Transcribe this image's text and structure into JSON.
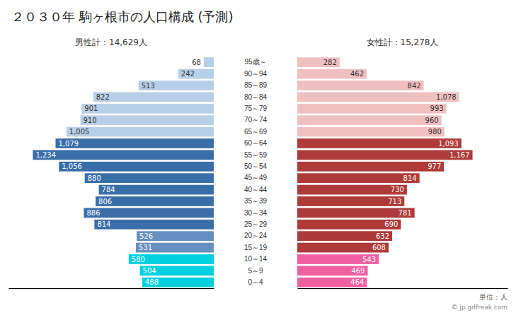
{
  "chart_data": {
    "type": "pyramid",
    "orientation": "horizontal",
    "title": "２０３０年 駒ヶ根市の人口構成 (予測)",
    "categories": [
      "0～4",
      "5～9",
      "10～14",
      "15～19",
      "20～24",
      "25～29",
      "30～34",
      "35～39",
      "40～44",
      "45～49",
      "50～54",
      "55～59",
      "60～64",
      "65～69",
      "70～74",
      "75～79",
      "80～84",
      "85～89",
      "90～94",
      "95歳～"
    ],
    "series": [
      {
        "name": "男性計：14,629人",
        "values": [
          488,
          504,
          580,
          531,
          526,
          814,
          886,
          806,
          784,
          880,
          1056,
          1234,
          1079,
          1005,
          910,
          901,
          822,
          513,
          242,
          68
        ],
        "value_labels": [
          "488",
          "504",
          "580",
          "531",
          "526",
          "814",
          "886",
          "806",
          "784",
          "880",
          "1,056",
          "1,234",
          "1,079",
          "1,005",
          "910",
          "901",
          "822",
          "513",
          "242",
          "68"
        ],
        "colors": [
          "#00d0e0",
          "#00d0e0",
          "#00d0e0",
          "#6690c0",
          "#6690c0",
          "#3a6ea8",
          "#3a6ea8",
          "#3a6ea8",
          "#3a6ea8",
          "#3a6ea8",
          "#3a6ea8",
          "#3a6ea8",
          "#3a6ea8",
          "#b8cfe8",
          "#b8cfe8",
          "#b8cfe8",
          "#b8cfe8",
          "#b8cfe8",
          "#b8cfe8",
          "#b8cfe8"
        ]
      },
      {
        "name": "女性計：15,278人",
        "values": [
          464,
          469,
          543,
          608,
          632,
          690,
          781,
          713,
          730,
          814,
          977,
          1167,
          1093,
          980,
          960,
          993,
          1078,
          842,
          462,
          282
        ],
        "value_labels": [
          "464",
          "469",
          "543",
          "608",
          "632",
          "690",
          "781",
          "713",
          "730",
          "814",
          "977",
          "1,167",
          "1,093",
          "980",
          "960",
          "993",
          "1,078",
          "842",
          "462",
          "282"
        ],
        "colors": [
          "#f060a0",
          "#f060a0",
          "#f060a0",
          "#ae3a3a",
          "#ae3a3a",
          "#ae3a3a",
          "#ae3a3a",
          "#ae3a3a",
          "#ae3a3a",
          "#ae3a3a",
          "#ae3a3a",
          "#ae3a3a",
          "#ae3a3a",
          "#f0c0c0",
          "#f0c0c0",
          "#f0c0c0",
          "#f0c0c0",
          "#f0c0c0",
          "#f0c0c0",
          "#f0c0c0"
        ]
      }
    ],
    "xlim": [
      0,
      1400
    ],
    "xticks": [],
    "data_labels": true,
    "tick_labels": "y",
    "grid": false,
    "annotations": [
      "単位：人",
      "© jp.gdfreak.com"
    ]
  }
}
